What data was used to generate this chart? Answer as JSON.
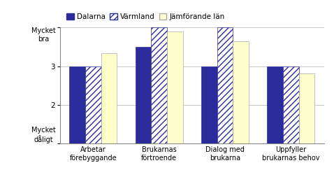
{
  "categories": [
    "Arbetar\nförebyggande",
    "Brukarnas\nförtroende",
    "Dialog med\nbrukarna",
    "Uppfyller\nbrukarnas behov"
  ],
  "series": {
    "Dalarna": [
      3.0,
      3.5,
      3.0,
      3.0
    ],
    "Värmland": [
      3.0,
      4.0,
      4.0,
      3.0
    ],
    "Jämförande län": [
      3.33,
      3.9,
      3.65,
      2.82
    ]
  },
  "colors": {
    "Dalarna": "#2B2B9B",
    "Värmland": "#2B2B9B",
    "Jämförande län": "#FFFFCC"
  },
  "hatch": {
    "Dalarna": "",
    "Värmland": "////",
    "Jämförande län": ""
  },
  "ylim": [
    1,
    4
  ],
  "yticks": [
    1,
    2,
    3,
    4
  ],
  "ylabel_top": "Mycket\nbra",
  "ylabel_bottom": "Mycket\ndåligt",
  "legend_labels": [
    "Dalarna",
    "Värmland",
    "Jämförande län"
  ],
  "bar_width": 0.24,
  "background_color": "#FFFFFF",
  "grid_color": "#C0C0C0",
  "tick_fontsize": 7.5,
  "legend_fontsize": 7.5
}
